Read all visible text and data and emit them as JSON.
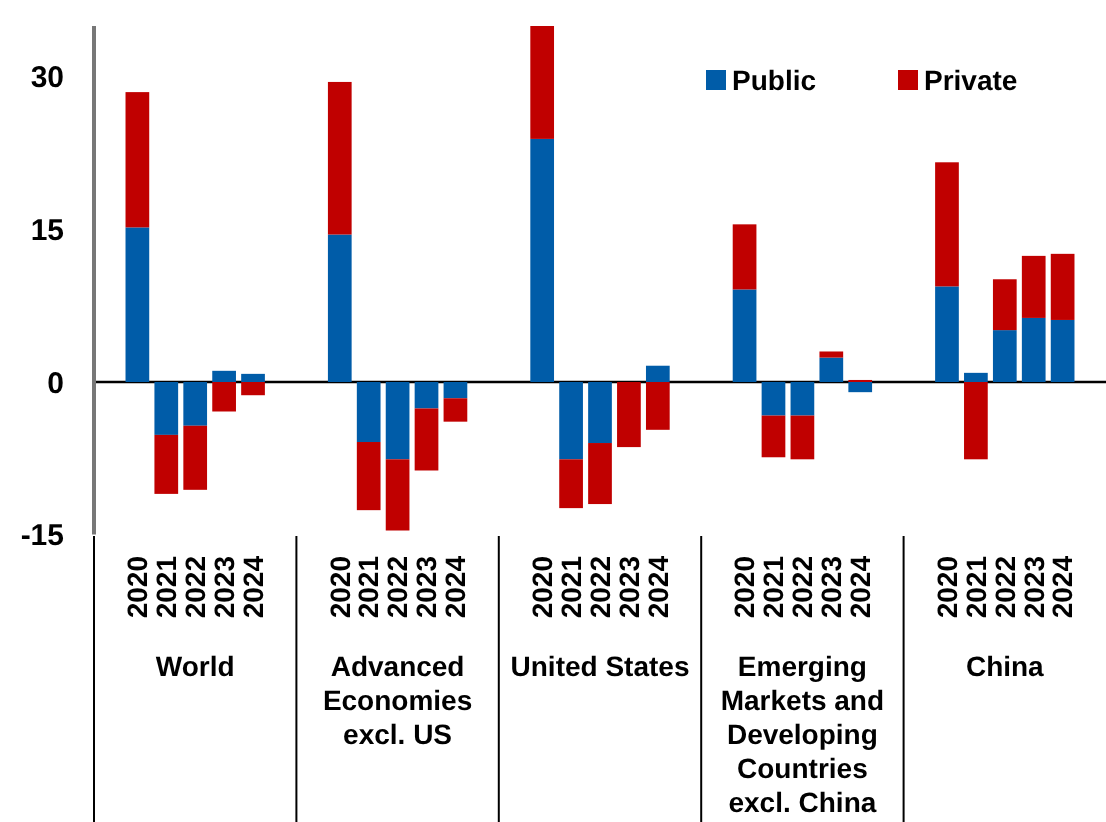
{
  "chart_data": {
    "type": "bar",
    "stacked": true,
    "legend": "top right",
    "categories": [
      null,
      "2020",
      "2021",
      "2022",
      "2023",
      "2024",
      null,
      null,
      "2020",
      "2021",
      "2022",
      "2023",
      "2024",
      null,
      null,
      "2020",
      "2021",
      "2022",
      "2023",
      "2024",
      null,
      null,
      "2020",
      "2021",
      "2022",
      "2023",
      "2024",
      null,
      null,
      "2020",
      "2021",
      "2022",
      "2023",
      "2024",
      null
    ],
    "series": [
      {
        "name": "Public",
        "color": "#005ca8",
        "values": [
          null,
          15.2,
          -5.2,
          -4.3,
          1.1,
          0.8,
          null,
          null,
          14.5,
          -5.9,
          -7.6,
          -2.6,
          -1.6,
          null,
          null,
          23.9,
          -7.6,
          -6.0,
          null,
          1.6,
          null,
          null,
          9.1,
          -3.3,
          -3.3,
          2.4,
          -1.0,
          null,
          null,
          9.4,
          0.9,
          5.1,
          6.3,
          6.1,
          null
        ]
      },
      {
        "name": "Private",
        "color": "#c00000",
        "values": [
          null,
          13.3,
          -5.8,
          -6.3,
          -2.9,
          -1.3,
          null,
          null,
          15.0,
          -6.7,
          -7.0,
          -6.1,
          -2.3,
          null,
          null,
          11.1,
          -4.8,
          -6.0,
          -6.4,
          -4.7,
          null,
          null,
          6.4,
          -4.1,
          -4.3,
          0.6,
          0.2,
          null,
          null,
          12.2,
          -7.6,
          5.0,
          6.1,
          6.5,
          null
        ]
      }
    ],
    "ylim": [
      -15,
      35
    ],
    "yticks": [
      -15,
      0,
      15,
      30
    ],
    "annotations": [
      "World",
      "Advanced Economies excl. US",
      "United States",
      "Emerging Markets and Developing Countries excl. China",
      "China"
    ]
  }
}
